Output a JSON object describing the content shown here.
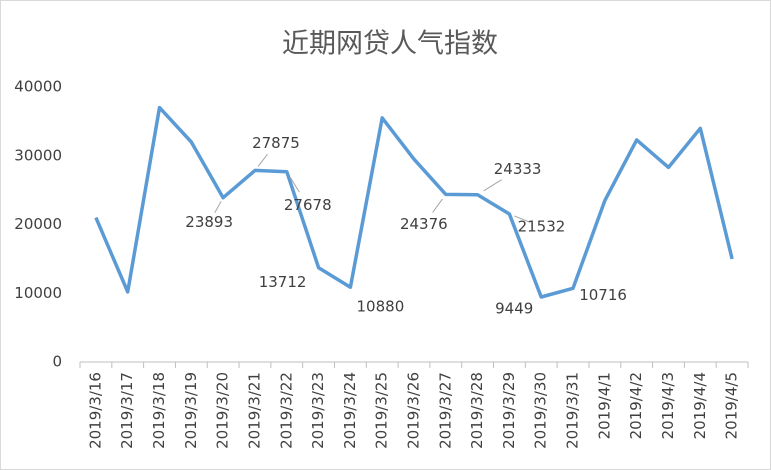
{
  "chart_data": {
    "type": "line",
    "title": "近期网贷人气指数",
    "categories": [
      "2019/3/16",
      "2019/3/17",
      "2019/3/18",
      "2019/3/19",
      "2019/3/20",
      "2019/3/21",
      "2019/3/22",
      "2019/3/23",
      "2019/3/24",
      "2019/3/25",
      "2019/3/26",
      "2019/3/27",
      "2019/3/28",
      "2019/3/29",
      "2019/3/30",
      "2019/3/31",
      "2019/4/1",
      "2019/4/2",
      "2019/4/3",
      "2019/4/4",
      "2019/4/5"
    ],
    "values": [
      21000,
      10200,
      37000,
      32000,
      23893,
      27875,
      27678,
      13712,
      10880,
      35500,
      29500,
      24376,
      24333,
      21532,
      9449,
      10716,
      23500,
      32300,
      28300,
      34000,
      15000
    ],
    "value_labels": [
      null,
      null,
      null,
      null,
      "23893",
      "27875",
      "27678",
      "13712",
      "10880",
      null,
      null,
      "24376",
      "24333",
      "21532",
      "9449",
      "10716",
      null,
      null,
      null,
      null,
      null
    ],
    "color": "#5b9bd5",
    "ylim": [
      0,
      40000
    ],
    "yticks": [
      0,
      10000,
      20000,
      30000,
      40000
    ],
    "grid": false
  }
}
